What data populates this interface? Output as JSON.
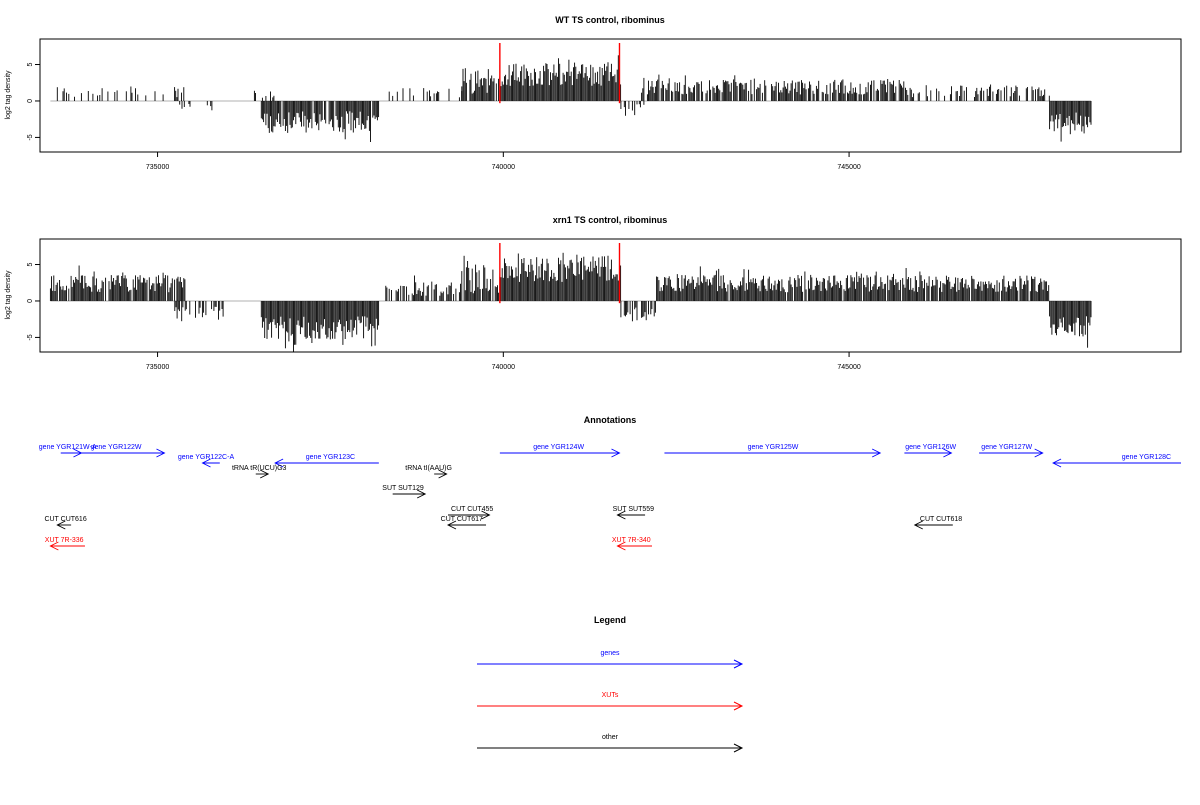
{
  "colors": {
    "axis": "#000000",
    "highlight": "#ff0000",
    "gene": "#0000ff",
    "xut": "#ff0000",
    "other": "#000000",
    "baseline": "#999999"
  },
  "chart_data": [
    {
      "type": "bar",
      "title": "WT TS control, ribominus",
      "ylabel": "log2 tag density",
      "xlabel": "",
      "xlim": [
        733300,
        749800
      ],
      "ylim": [
        -7,
        8.5
      ],
      "xticks": [
        735000,
        740000,
        745000
      ],
      "xtick_labels": [
        "735000",
        "740000",
        "745000"
      ],
      "yticks": [
        -5,
        0,
        5
      ],
      "ytick_labels": [
        "-5",
        "0",
        "5"
      ],
      "highlight_positions": [
        739950,
        741680
      ],
      "signal_segments": [
        {
          "start": 733450,
          "end": 735400,
          "sign": 1,
          "mean": 1.2,
          "amp": 0.9,
          "density": 0.28
        },
        {
          "start": 735320,
          "end": 735900,
          "sign": -1,
          "mean": 0.8,
          "amp": 0.6,
          "density": 0.3
        },
        {
          "start": 736300,
          "end": 736700,
          "sign": 1,
          "mean": 0.9,
          "amp": 0.6,
          "density": 0.3
        },
        {
          "start": 736500,
          "end": 738200,
          "sign": -1,
          "mean": 2.9,
          "amp": 1.5,
          "density": 0.95
        },
        {
          "start": 738300,
          "end": 739400,
          "sign": 1,
          "mean": 1.0,
          "amp": 0.8,
          "density": 0.3
        },
        {
          "start": 739400,
          "end": 739950,
          "sign": 1,
          "mean": 2.8,
          "amp": 1.8,
          "density": 0.8
        },
        {
          "start": 739950,
          "end": 741700,
          "sign": 1,
          "mean": 3.6,
          "amp": 1.6,
          "density": 1.0
        },
        {
          "start": 741700,
          "end": 742100,
          "sign": -1,
          "mean": 1.2,
          "amp": 0.9,
          "density": 0.4
        },
        {
          "start": 742000,
          "end": 745800,
          "sign": 1,
          "mean": 1.9,
          "amp": 1.0,
          "density": 0.8
        },
        {
          "start": 745800,
          "end": 747900,
          "sign": 1,
          "mean": 1.4,
          "amp": 0.9,
          "density": 0.5
        },
        {
          "start": 747900,
          "end": 748500,
          "sign": -1,
          "mean": 2.9,
          "amp": 1.3,
          "density": 1.0
        }
      ]
    },
    {
      "type": "bar",
      "title": "xrn1 TS control, ribominus",
      "ylabel": "log2 tag density",
      "xlabel": "",
      "xlim": [
        733300,
        749800
      ],
      "ylim": [
        -7,
        8.5
      ],
      "xticks": [
        735000,
        740000,
        745000
      ],
      "xtick_labels": [
        "735000",
        "740000",
        "745000"
      ],
      "yticks": [
        -5,
        0,
        5
      ],
      "ytick_labels": [
        "-5",
        "0",
        "5"
      ],
      "highlight_positions": [
        739950,
        741680
      ],
      "signal_segments": [
        {
          "start": 733450,
          "end": 735400,
          "sign": 1,
          "mean": 2.4,
          "amp": 1.2,
          "density": 0.95
        },
        {
          "start": 735250,
          "end": 735950,
          "sign": -1,
          "mean": 1.6,
          "amp": 1.0,
          "density": 0.6
        },
        {
          "start": 736500,
          "end": 738200,
          "sign": -1,
          "mean": 3.7,
          "amp": 1.6,
          "density": 1.0
        },
        {
          "start": 738300,
          "end": 739400,
          "sign": 1,
          "mean": 1.7,
          "amp": 1.0,
          "density": 0.7
        },
        {
          "start": 739400,
          "end": 739950,
          "sign": 1,
          "mean": 3.0,
          "amp": 2.0,
          "density": 0.9
        },
        {
          "start": 739950,
          "end": 741700,
          "sign": 1,
          "mean": 4.4,
          "amp": 1.8,
          "density": 1.0
        },
        {
          "start": 741700,
          "end": 742200,
          "sign": -1,
          "mean": 1.8,
          "amp": 1.0,
          "density": 0.7
        },
        {
          "start": 742200,
          "end": 747900,
          "sign": 1,
          "mean": 2.4,
          "amp": 1.2,
          "density": 0.95
        },
        {
          "start": 747900,
          "end": 748500,
          "sign": -1,
          "mean": 3.6,
          "amp": 1.5,
          "density": 1.0
        }
      ]
    }
  ],
  "annotations": {
    "title": "Annotations",
    "features": [
      {
        "label": "gene YGR121W-A",
        "color": "gene",
        "dir": 1,
        "start": 733600,
        "end": 733900,
        "row": 0,
        "label_at": 733700
      },
      {
        "label": "gene YGR122W",
        "color": "gene",
        "dir": 1,
        "start": 733650,
        "end": 735100,
        "row": 0,
        "label_at": 734400
      },
      {
        "label": "gene YGR122C-A",
        "color": "gene",
        "dir": -1,
        "start": 735650,
        "end": 735900,
        "row": 1,
        "label_at": 735700
      },
      {
        "label": "gene YGR123C",
        "color": "gene",
        "dir": -1,
        "start": 736700,
        "end": 738200,
        "row": 1,
        "label_at": 737500
      },
      {
        "label": "tRNA tR(UCU)G3",
        "color": "other",
        "dir": 1,
        "start": 736420,
        "end": 736600,
        "row": 2,
        "label_at": 736470
      },
      {
        "label": "tRNA tI(AAU)G",
        "color": "other",
        "dir": 1,
        "start": 739000,
        "end": 739180,
        "row": 2,
        "label_at": 738920
      },
      {
        "label": "gene YGR124W",
        "color": "gene",
        "dir": 1,
        "start": 739950,
        "end": 741680,
        "row": 0,
        "label_at": 740800
      },
      {
        "label": "gene YGR125W",
        "color": "gene",
        "dir": 1,
        "start": 742330,
        "end": 745450,
        "row": 0,
        "label_at": 743900
      },
      {
        "label": "gene YGR126W",
        "color": "gene",
        "dir": 1,
        "start": 745800,
        "end": 746480,
        "row": 0,
        "label_at": 746180
      },
      {
        "label": "gene YGR127W",
        "color": "gene",
        "dir": 1,
        "start": 746880,
        "end": 747800,
        "row": 0,
        "label_at": 747280
      },
      {
        "label": "gene YGR128C",
        "color": "gene",
        "dir": -1,
        "start": 747950,
        "end": 749800,
        "row": 1,
        "label_at": 749300
      },
      {
        "label": "SUT SUT129",
        "color": "other",
        "dir": 1,
        "start": 738400,
        "end": 738870,
        "row": 3,
        "label_at": 738550
      },
      {
        "label": "CUT CUT455",
        "color": "other",
        "dir": 1,
        "start": 739200,
        "end": 739800,
        "row": 4,
        "label_at": 739550
      },
      {
        "label": "CUT CUT617",
        "color": "other",
        "dir": -1,
        "start": 739200,
        "end": 739750,
        "row": 5,
        "label_at": 739400
      },
      {
        "label": "SUT SUT559",
        "color": "other",
        "dir": -1,
        "start": 741650,
        "end": 742050,
        "row": 4,
        "label_at": 741880
      },
      {
        "label": "CUT CUT616",
        "color": "other",
        "dir": -1,
        "start": 733550,
        "end": 733750,
        "row": 5,
        "label_at": 733670
      },
      {
        "label": "CUT CUT618",
        "color": "other",
        "dir": -1,
        "start": 745950,
        "end": 746500,
        "row": 5,
        "label_at": 746330
      },
      {
        "label": "XUT 7R-336",
        "color": "xut",
        "dir": -1,
        "start": 733450,
        "end": 733950,
        "row": 6,
        "label_at": 733650
      },
      {
        "label": "XUT 7R-340",
        "color": "xut",
        "dir": -1,
        "start": 741650,
        "end": 742150,
        "row": 6,
        "label_at": 741850
      }
    ]
  },
  "legend": {
    "title": "Legend",
    "items": [
      {
        "label": "genes",
        "color": "gene"
      },
      {
        "label": "XUTs",
        "color": "xut"
      },
      {
        "label": "other",
        "color": "other"
      }
    ]
  }
}
